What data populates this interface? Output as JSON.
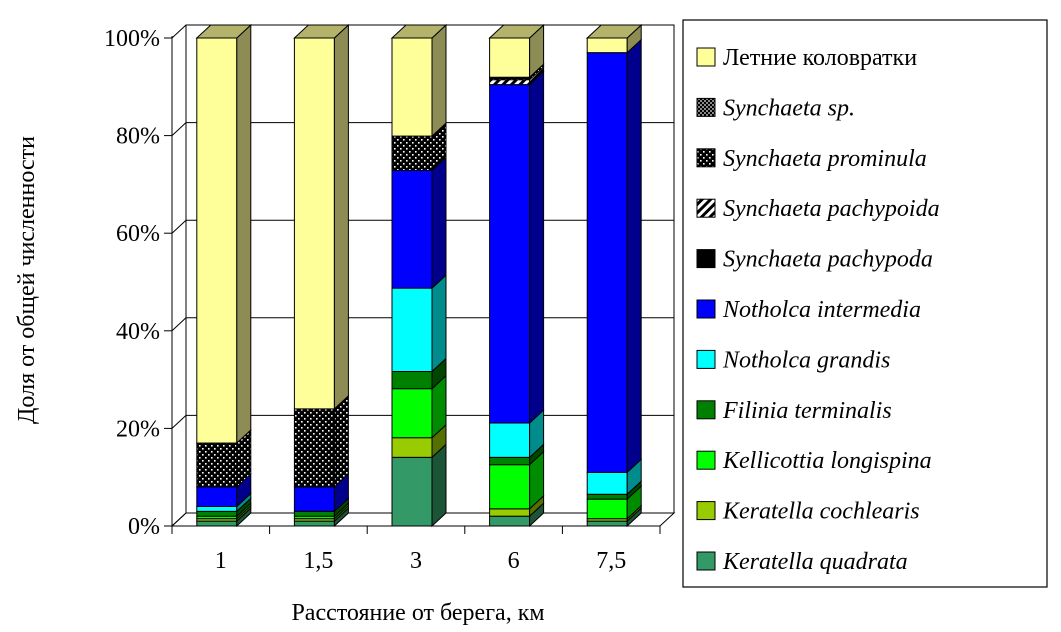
{
  "chart_data": {
    "type": "bar",
    "stacked": true,
    "percent_stacked": true,
    "three_d": true,
    "title": "",
    "xlabel": "Расстояние от берега, км",
    "ylabel": "Доля от общей численности",
    "categories": [
      "1",
      "1,5",
      "3",
      "6",
      "7,5"
    ],
    "y_ticks": [
      "0%",
      "20%",
      "40%",
      "60%",
      "80%",
      "100%"
    ],
    "ylim": [
      0,
      100
    ],
    "grid": true,
    "legend_position": "right",
    "series": [
      {
        "name": "Keratella quadrata",
        "italic": true,
        "color": "#339966",
        "values": [
          1,
          1,
          14,
          2,
          1
        ]
      },
      {
        "name": "Keratella cochlearis",
        "italic": true,
        "color": "#99cc00",
        "values": [
          0.5,
          0.5,
          4,
          1.5,
          0.5
        ]
      },
      {
        "name": "Kellicottia longispina",
        "italic": true,
        "color": "#00ff00",
        "values": [
          0.5,
          0.5,
          10,
          9,
          4
        ]
      },
      {
        "name": "Filinia terminalis",
        "italic": true,
        "color": "#008000",
        "values": [
          1,
          1,
          3.5,
          1.5,
          1
        ]
      },
      {
        "name": "Notholca grandis",
        "italic": true,
        "color": "#00ffff",
        "values": [
          1,
          0,
          17,
          7,
          4.5
        ]
      },
      {
        "name": "Notholca intermedia",
        "italic": true,
        "color": "#0000ff",
        "values": [
          4,
          5,
          24,
          69,
          86
        ]
      },
      {
        "name": "Synchaeta pachypoda",
        "italic": true,
        "color": "#000000",
        "values": [
          0,
          0,
          0,
          0,
          0
        ]
      },
      {
        "name": "Synchaeta pachypoida",
        "italic": true,
        "color": "#ffffff",
        "pattern": "diagonal-stripes",
        "values": [
          0,
          0,
          0,
          1,
          0
        ]
      },
      {
        "name": "Synchaeta prominula",
        "italic": true,
        "color": "#000000",
        "pattern": "white-dots",
        "values": [
          9,
          16,
          7,
          0.5,
          0
        ]
      },
      {
        "name": "Synchaeta sp.",
        "italic": true,
        "color": "#000000",
        "pattern": "checker",
        "values": [
          0,
          0,
          0,
          0,
          0
        ]
      },
      {
        "name": "Летние коловратки",
        "italic": false,
        "color": "#ffff99",
        "values": [
          83,
          76,
          20,
          8,
          3
        ]
      }
    ]
  }
}
